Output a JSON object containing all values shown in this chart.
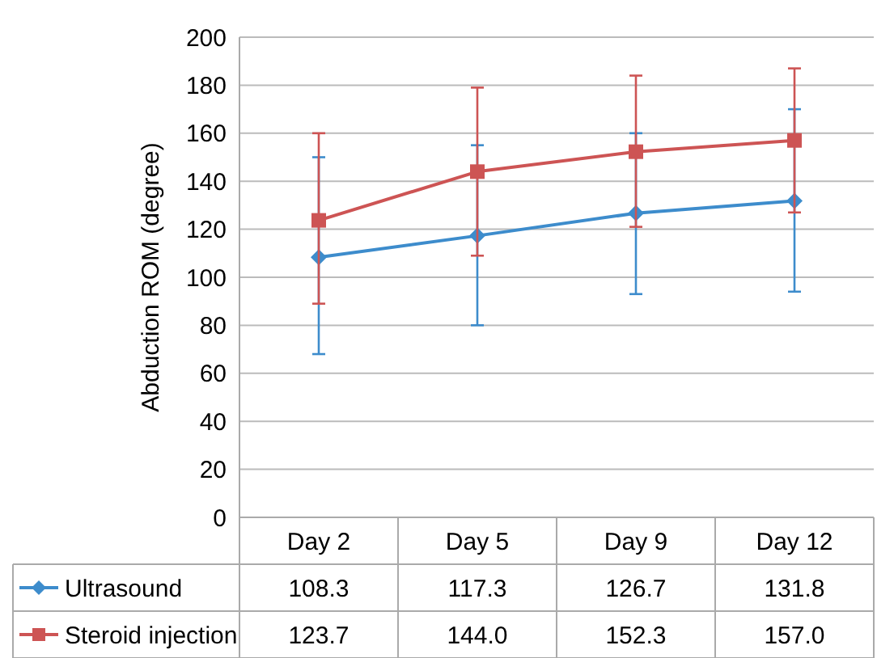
{
  "chart_data": {
    "type": "line",
    "ylabel": "Abduction ROM (degree)",
    "categories": [
      "Day 2",
      "Day 5",
      "Day 9",
      "Day 12"
    ],
    "series": [
      {
        "name": "Ultrasound",
        "color": "#3d8ccc",
        "marker": "diamond",
        "values": [
          108.3,
          117.3,
          126.7,
          131.8
        ],
        "value_labels": [
          "108.3",
          "117.3",
          "126.7",
          "131.8"
        ],
        "errors": [
          [
            68,
            150
          ],
          [
            80,
            155
          ],
          [
            93,
            160
          ],
          [
            94,
            170
          ]
        ]
      },
      {
        "name": "Steroid injection",
        "color": "#cd5454",
        "marker": "square",
        "values": [
          123.7,
          144.0,
          152.3,
          157.0
        ],
        "value_labels": [
          "123.7",
          "144.0",
          "152.3",
          "157.0"
        ],
        "errors": [
          [
            89,
            160
          ],
          [
            109,
            179
          ],
          [
            121,
            184
          ],
          [
            127,
            187
          ]
        ]
      }
    ],
    "ylim": [
      0,
      200
    ],
    "yticks": [
      0,
      20,
      40,
      60,
      80,
      100,
      120,
      140,
      160,
      180,
      200
    ],
    "grid": "y",
    "legend": "bottom"
  }
}
